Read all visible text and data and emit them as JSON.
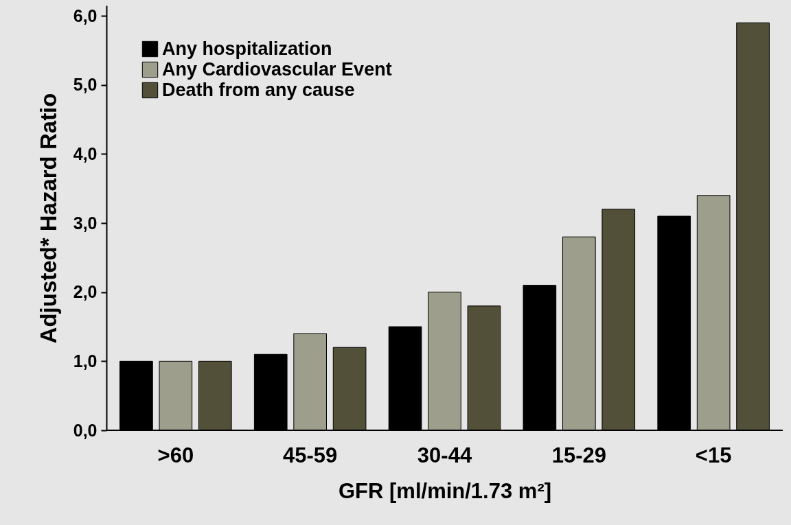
{
  "chart_data": {
    "type": "bar",
    "xlabel": "GFR [ml/min/1.73 m²]",
    "ylabel": "Adjusted* Hazard Ratio",
    "categories": [
      ">60",
      "45-59",
      "30-44",
      "15-29",
      "<15"
    ],
    "series": [
      {
        "name": "Any hospitalization",
        "color": "#000000",
        "values": [
          1.0,
          1.1,
          1.5,
          2.1,
          3.1
        ]
      },
      {
        "name": "Any Cardiovascular Event",
        "color": "#9e9e8c",
        "values": [
          1.0,
          1.4,
          2.0,
          2.8,
          3.4
        ]
      },
      {
        "name": "Death from any cause",
        "color": "#525038",
        "values": [
          1.0,
          1.2,
          1.8,
          3.2,
          5.9
        ]
      }
    ],
    "ylim": [
      0,
      6.15
    ],
    "yticks": [
      {
        "value": 0,
        "label": "0,0"
      },
      {
        "value": 1,
        "label": "1,0"
      },
      {
        "value": 2,
        "label": "2,0"
      },
      {
        "value": 3,
        "label": "3,0"
      },
      {
        "value": 4,
        "label": "4,0"
      },
      {
        "value": 5,
        "label": "5,0"
      },
      {
        "value": 6,
        "label": "6,0"
      }
    ],
    "grid": false,
    "legend": "top left"
  }
}
